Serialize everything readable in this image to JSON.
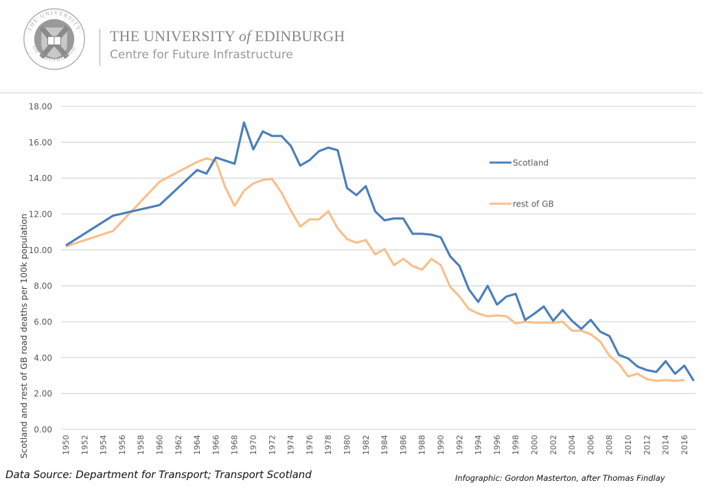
{
  "header": {
    "logo_text": "THE UNIVERSITY OF EDINBURGH",
    "university_prefix": "THE UNIVERSITY ",
    "university_of": "of",
    "university_suffix": " EDINBURGH",
    "centre": "Centre for Future Infrastructure"
  },
  "footer": {
    "source": "Data Source: Department for Transport; Transport Scotland",
    "credit": "Infographic: Gordon Masterton, after Thomas Findlay"
  },
  "colors": {
    "scotland": "#4a7ebb",
    "rest_of_gb": "#f8bf8a",
    "grid": "#d9d9d9",
    "tick_text": "#595959"
  },
  "chart_data": {
    "type": "line",
    "title": "",
    "xlabel": "",
    "ylabel": "Scotland and rest of GB road deaths per 100k population",
    "ylim": [
      0,
      18
    ],
    "yticks": [
      "0.00",
      "2.00",
      "4.00",
      "6.00",
      "8.00",
      "10.00",
      "12.00",
      "14.00",
      "16.00",
      "18.00"
    ],
    "xlim": [
      1950,
      2017
    ],
    "xticks": [
      "1950",
      "1952",
      "1954",
      "1956",
      "1958",
      "1960",
      "1962",
      "1964",
      "1966",
      "1968",
      "1970",
      "1972",
      "1974",
      "1976",
      "1978",
      "1980",
      "1982",
      "1984",
      "1986",
      "1988",
      "1990",
      "1992",
      "1994",
      "1996",
      "1998",
      "2000",
      "2002",
      "2004",
      "2006",
      "2008",
      "2010",
      "2012",
      "2014",
      "2016"
    ],
    "grid": true,
    "legend_position": "right",
    "series": [
      {
        "name": "Scotland",
        "x": [
          1950,
          1955,
          1960,
          1964,
          1965,
          1966,
          1968,
          1969,
          1970,
          1971,
          1972,
          1973,
          1974,
          1975,
          1976,
          1977,
          1978,
          1979,
          1980,
          1981,
          1982,
          1983,
          1984,
          1985,
          1986,
          1987,
          1988,
          1989,
          1990,
          1991,
          1992,
          1993,
          1994,
          1995,
          1996,
          1997,
          1998,
          1999,
          2000,
          2001,
          2002,
          2003,
          2004,
          2005,
          2006,
          2007,
          2008,
          2009,
          2010,
          2011,
          2012,
          2013,
          2014,
          2015,
          2016,
          2017
        ],
        "values": [
          10.25,
          11.9,
          12.5,
          14.45,
          14.25,
          15.15,
          14.8,
          17.1,
          15.6,
          16.6,
          16.35,
          16.35,
          15.8,
          14.7,
          15.0,
          15.5,
          15.7,
          15.55,
          13.45,
          13.05,
          13.55,
          12.15,
          11.65,
          11.75,
          11.75,
          10.9,
          10.9,
          10.85,
          10.7,
          9.65,
          9.1,
          7.8,
          7.1,
          8.0,
          6.95,
          7.4,
          7.55,
          6.1,
          6.45,
          6.85,
          6.05,
          6.65,
          6.05,
          5.6,
          6.1,
          5.45,
          5.2,
          4.15,
          3.95,
          3.5,
          3.3,
          3.2,
          3.8,
          3.1,
          3.55,
          2.7
        ]
      },
      {
        "name": "rest of GB",
        "x": [
          1950,
          1955,
          1960,
          1964,
          1965,
          1966,
          1967,
          1968,
          1969,
          1970,
          1971,
          1972,
          1973,
          1974,
          1975,
          1976,
          1977,
          1978,
          1979,
          1980,
          1981,
          1982,
          1983,
          1984,
          1985,
          1986,
          1987,
          1988,
          1989,
          1990,
          1991,
          1992,
          1993,
          1994,
          1995,
          1996,
          1997,
          1998,
          1999,
          2000,
          2001,
          2002,
          2003,
          2004,
          2005,
          2006,
          2007,
          2008,
          2009,
          2010,
          2011,
          2012,
          2013,
          2014,
          2015,
          2016
        ],
        "values": [
          10.2,
          11.05,
          13.8,
          14.9,
          15.1,
          14.95,
          13.5,
          12.45,
          13.3,
          13.7,
          13.9,
          13.95,
          13.2,
          12.2,
          11.3,
          11.7,
          11.7,
          12.15,
          11.2,
          10.6,
          10.4,
          10.55,
          9.75,
          10.05,
          9.15,
          9.5,
          9.1,
          8.9,
          9.5,
          9.15,
          7.95,
          7.4,
          6.7,
          6.45,
          6.3,
          6.35,
          6.3,
          5.9,
          6.0,
          5.95,
          5.95,
          5.95,
          6.0,
          5.5,
          5.5,
          5.3,
          4.9,
          4.1,
          3.65,
          2.95,
          3.1,
          2.8,
          2.7,
          2.75,
          2.7,
          2.75
        ]
      }
    ]
  }
}
